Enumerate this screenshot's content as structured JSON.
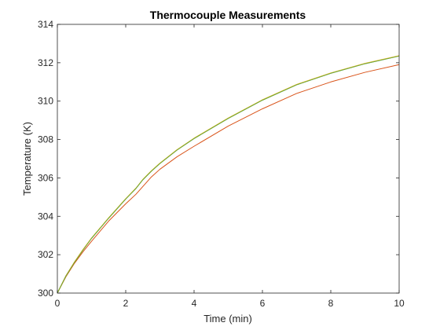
{
  "chart_data": {
    "type": "line",
    "title": "Thermocouple Measurements",
    "xlabel": "Time (min)",
    "ylabel": "Temperature (K)",
    "xlim": [
      0,
      10
    ],
    "ylim": [
      300,
      314
    ],
    "xticks": [
      0,
      2,
      4,
      6,
      8,
      10
    ],
    "yticks": [
      300,
      302,
      304,
      306,
      308,
      310,
      312,
      314
    ],
    "grid": false,
    "legend": "none",
    "colors": {
      "axis": "#262626",
      "background": "#ffffff"
    },
    "series": [
      {
        "color": "#0072BD",
        "x": [
          0,
          0.25,
          0.5,
          0.75,
          1,
          1.5,
          2,
          2.3,
          2.5,
          2.75,
          3,
          3.5,
          4,
          5,
          6,
          7,
          8,
          9,
          10
        ],
        "y": [
          300,
          300.9,
          301.6,
          302.25,
          302.85,
          303.9,
          304.9,
          305.45,
          305.9,
          306.35,
          306.75,
          307.45,
          308.05,
          309.1,
          310.05,
          310.85,
          311.45,
          311.95,
          312.35
        ]
      },
      {
        "color": "#D95319",
        "x": [
          0,
          0.25,
          0.5,
          0.75,
          1,
          1.5,
          2,
          2.3,
          2.5,
          2.75,
          3,
          3.5,
          4,
          5,
          6,
          7,
          8,
          9,
          10
        ],
        "y": [
          300,
          300.85,
          301.55,
          302.15,
          302.7,
          303.75,
          304.65,
          305.15,
          305.55,
          306.05,
          306.45,
          307.1,
          307.65,
          308.7,
          309.6,
          310.4,
          311.0,
          311.5,
          311.9
        ]
      },
      {
        "color": "#EDB120",
        "x": [
          0,
          0.25,
          0.5,
          0.75,
          1,
          1.5,
          2,
          2.3,
          2.5,
          2.75,
          3,
          3.5,
          4,
          5,
          6,
          7,
          8,
          9,
          10
        ],
        "y": [
          300,
          300.9,
          301.62,
          302.27,
          302.87,
          303.92,
          304.92,
          305.47,
          305.92,
          306.37,
          306.77,
          307.47,
          308.07,
          309.12,
          310.07,
          310.87,
          311.47,
          311.97,
          312.37
        ]
      },
      {
        "color": "#77AC30",
        "x": [
          0,
          0.25,
          0.5,
          0.75,
          1,
          1.5,
          2,
          2.3,
          2.5,
          2.75,
          3,
          3.5,
          4,
          5,
          6,
          7,
          8,
          9,
          10
        ],
        "y": [
          300,
          300.88,
          301.6,
          302.24,
          302.85,
          303.9,
          304.9,
          305.45,
          305.9,
          306.35,
          306.75,
          307.45,
          308.05,
          309.1,
          310.05,
          310.85,
          311.45,
          311.95,
          312.35
        ]
      }
    ]
  }
}
